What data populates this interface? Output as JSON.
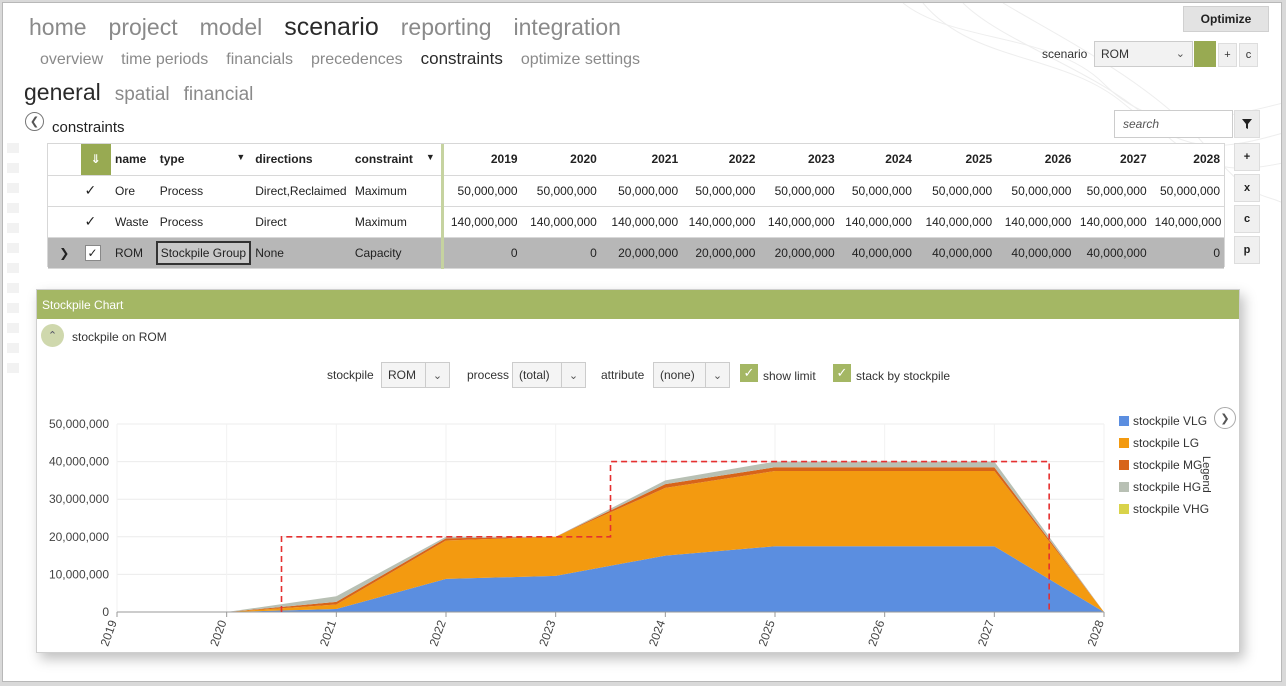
{
  "nav": {
    "primary": [
      "home",
      "project",
      "model",
      "scenario",
      "reporting",
      "integration"
    ],
    "primary_active": "scenario",
    "secondary": [
      "overview",
      "time periods",
      "financials",
      "precedences",
      "constraints",
      "optimize settings"
    ],
    "secondary_active": "constraints",
    "tertiary": [
      "general",
      "spatial",
      "financial"
    ],
    "tertiary_active": "general"
  },
  "toolbar": {
    "optimize_label": "Optimize",
    "scenario_label": "scenario",
    "scenario_value": "ROM",
    "plus_label": "+",
    "c_label": "c"
  },
  "constraints": {
    "title": "constraints",
    "search_placeholder": "search",
    "side_buttons": [
      "+",
      "x",
      "c",
      "p"
    ],
    "columns": [
      "name",
      "type",
      "directions",
      "constraint"
    ],
    "years": [
      "2019",
      "2020",
      "2021",
      "2022",
      "2023",
      "2024",
      "2025",
      "2026",
      "2027",
      "2028"
    ],
    "rows": [
      {
        "name": "Ore",
        "type": "Process",
        "directions": "Direct,Reclaimed",
        "constraint": "Maximum",
        "values": [
          "50,000,000",
          "50,000,000",
          "50,000,000",
          "50,000,000",
          "50,000,000",
          "50,000,000",
          "50,000,000",
          "50,000,000",
          "50,000,000",
          "50,000,000"
        ]
      },
      {
        "name": "Waste",
        "type": "Process",
        "directions": "Direct",
        "constraint": "Maximum",
        "values": [
          "140,000,000",
          "140,000,000",
          "140,000,000",
          "140,000,000",
          "140,000,000",
          "140,000,000",
          "140,000,000",
          "140,000,000",
          "140,000,000",
          "140,000,000"
        ]
      },
      {
        "name": "ROM",
        "type": "Stockpile Group",
        "directions": "None",
        "constraint": "Capacity",
        "values": [
          "0",
          "0",
          "20,000,000",
          "20,000,000",
          "20,000,000",
          "40,000,000",
          "40,000,000",
          "40,000,000",
          "40,000,000",
          "0"
        ]
      }
    ]
  },
  "stockpile_chart": {
    "panel_title": "Stockpile Chart",
    "subtitle": "stockpile on ROM",
    "controls": {
      "stockpile_label": "stockpile",
      "stockpile_value": "ROM",
      "process_label": "process",
      "process_value": "(total)",
      "attribute_label": "attribute",
      "attribute_value": "(none)",
      "show_limit_label": "show limit",
      "stack_label": "stack by stockpile"
    },
    "legend_title": "Legend"
  },
  "chart_data": {
    "type": "area",
    "stacked": true,
    "x": [
      "2019",
      "2020",
      "2021",
      "2022",
      "2023",
      "2024",
      "2025",
      "2026",
      "2027",
      "2028"
    ],
    "ylim": [
      0,
      50000000
    ],
    "yticks": [
      "0",
      "10,000,000",
      "20,000,000",
      "30,000,000",
      "40,000,000",
      "50,000,000"
    ],
    "series": [
      {
        "name": "stockpile VLG",
        "color": "#5b8ee0",
        "values": [
          0,
          0,
          800000,
          8800000,
          9600000,
          15000000,
          17500000,
          17500000,
          17500000,
          0
        ]
      },
      {
        "name": "stockpile LG",
        "color": "#f39a10",
        "values": [
          0,
          0,
          1200000,
          10200000,
          10400000,
          18000000,
          20000000,
          20000000,
          20000000,
          0
        ]
      },
      {
        "name": "stockpile MG",
        "color": "#d7641a",
        "values": [
          0,
          0,
          700000,
          600000,
          0,
          1000000,
          1000000,
          1000000,
          1000000,
          0
        ]
      },
      {
        "name": "stockpile HG",
        "color": "#b8c0b4",
        "values": [
          0,
          0,
          1500000,
          400000,
          0,
          1000000,
          1500000,
          1500000,
          1500000,
          0
        ]
      },
      {
        "name": "stockpile VHG",
        "color": "#d9d34a",
        "values": [
          0,
          0,
          0,
          0,
          0,
          0,
          0,
          0,
          0,
          0
        ]
      }
    ],
    "limit": {
      "color": "#e53030",
      "steps": [
        [
          2020.5,
          2023.5,
          20000000
        ],
        [
          2023.5,
          2027.5,
          40000000
        ]
      ]
    },
    "grid": true,
    "legend_position": "right"
  }
}
